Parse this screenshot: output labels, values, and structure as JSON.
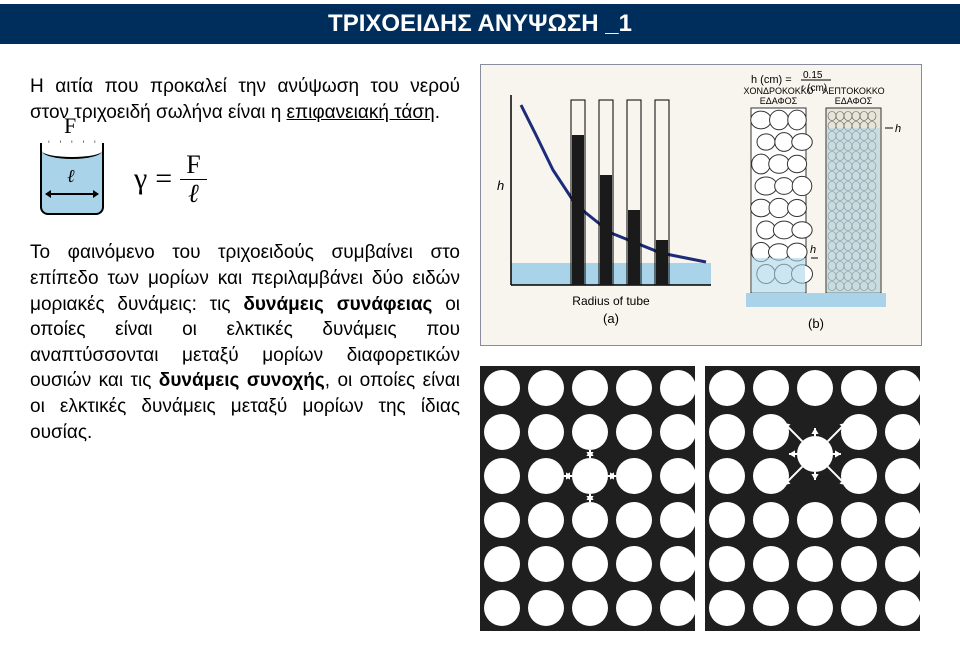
{
  "title": "ΤΡΙΧΟΕΙΔΗΣ ΑΝΥΨΩΣΗ _1",
  "para1_prefix": "Η αιτία που προκαλεί την ανύψωση του νερού στον τριχοειδή σωλήνα είναι η ",
  "para1_underlined": "επιφανειακή τάση",
  "para1_suffix": ".",
  "meniscus_F": "F",
  "meniscus_ell": "ℓ",
  "eq_gamma": "γ",
  "eq_eq": "=",
  "eq_num": "F",
  "eq_den": "ℓ",
  "para2_a": "Το φαινόμενο του τριχοειδούς συμβαίνει στο επίπεδο των μορίων και περιλαμβάνει δύο ειδών μοριακές δυνάμεις: τις ",
  "para2_b": "δυνάμεις συνάφειας",
  "para2_c": " οι οποίες είναι οι ελκτικές δυνάμεις που αναπτύσσονται μεταξύ μορίων διαφορετικών ουσιών και τις ",
  "para2_d": "δυνάμεις συνοχής",
  "para2_e": ", οι οποίες είναι οι ελκτικές δυνάμεις μεταξύ μορίων της ίδιας ουσίας.",
  "fig_top": {
    "soil_coarse": "ΧΟΝΔΡΟΚΟΚΚΟ\nΕΔΑΦΟΣ",
    "soil_fine": "ΛΕΠΤΟΚΟΚΚΟ\nΕΔΑΦΟΣ",
    "formula": "h (cm) = 0.15 / r (cm)",
    "h_label": "h",
    "xaxis": "Radius of tube",
    "a_label": "(a)",
    "b_label": "(b)",
    "colors": {
      "bg": "#f7f5ed",
      "water": "#a9d3e8",
      "curve": "#1c2b7a",
      "tube_fill": "#1a1a1a",
      "soil_border": "#333333",
      "fine_fill": "#e8e4d8"
    },
    "tube_heights": [
      150,
      110,
      75,
      45
    ],
    "curve_points": [
      [
        40,
        40
      ],
      [
        55,
        70
      ],
      [
        72,
        105
      ],
      [
        95,
        140
      ],
      [
        130,
        168
      ],
      [
        180,
        188
      ],
      [
        225,
        197
      ]
    ]
  },
  "fig_bottom": {
    "colors": {
      "bg": "#1f1f1f",
      "circle": "#ffffff"
    },
    "left_circles": [
      [
        22,
        22
      ],
      [
        66,
        22
      ],
      [
        110,
        22
      ],
      [
        154,
        22
      ],
      [
        198,
        22
      ],
      [
        22,
        66
      ],
      [
        66,
        66
      ],
      [
        110,
        66
      ],
      [
        154,
        66
      ],
      [
        198,
        66
      ],
      [
        22,
        110
      ],
      [
        66,
        110
      ],
      [
        110,
        110
      ],
      [
        154,
        110
      ],
      [
        198,
        110
      ],
      [
        22,
        154
      ],
      [
        66,
        154
      ],
      [
        110,
        154
      ],
      [
        154,
        154
      ],
      [
        198,
        154
      ],
      [
        22,
        198
      ],
      [
        66,
        198
      ],
      [
        110,
        198
      ],
      [
        154,
        198
      ],
      [
        198,
        198
      ],
      [
        22,
        242
      ],
      [
        66,
        242
      ],
      [
        110,
        242
      ],
      [
        154,
        242
      ],
      [
        198,
        242
      ]
    ],
    "right_circles": [
      [
        22,
        22
      ],
      [
        66,
        22
      ],
      [
        110,
        22
      ],
      [
        154,
        22
      ],
      [
        198,
        22
      ],
      [
        22,
        66
      ],
      [
        66,
        66
      ],
      [
        154,
        66
      ],
      [
        198,
        66
      ],
      [
        22,
        110
      ],
      [
        66,
        110
      ],
      [
        154,
        110
      ],
      [
        198,
        110
      ],
      [
        22,
        154
      ],
      [
        66,
        154
      ],
      [
        110,
        154
      ],
      [
        154,
        154
      ],
      [
        198,
        154
      ],
      [
        22,
        198
      ],
      [
        66,
        198
      ],
      [
        110,
        198
      ],
      [
        154,
        198
      ],
      [
        198,
        198
      ],
      [
        22,
        242
      ],
      [
        66,
        242
      ],
      [
        110,
        242
      ],
      [
        154,
        242
      ],
      [
        198,
        242
      ]
    ],
    "left_center": [
      110,
      110
    ],
    "left_targets": [
      [
        66,
        110
      ],
      [
        154,
        110
      ],
      [
        110,
        66
      ],
      [
        110,
        154
      ]
    ],
    "right_center": [
      110,
      88
    ],
    "right_targets": [
      [
        66,
        44
      ],
      [
        110,
        44
      ],
      [
        154,
        44
      ],
      [
        66,
        88
      ],
      [
        154,
        88
      ],
      [
        66,
        132
      ],
      [
        110,
        132
      ],
      [
        154,
        132
      ]
    ]
  }
}
